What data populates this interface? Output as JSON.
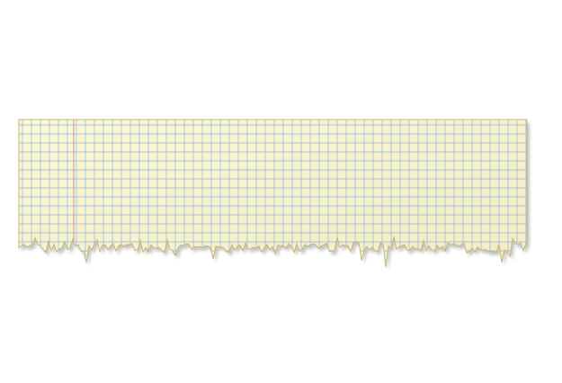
{
  "paper": {
    "background_top": "#fbf8d6",
    "background_bottom": "#f3ecc4",
    "grid_color": "#8fb3d9",
    "margin_line_color": "#d98aa6",
    "edge_color": "#c6b77e",
    "shadow_color": "#9a9a90"
  }
}
